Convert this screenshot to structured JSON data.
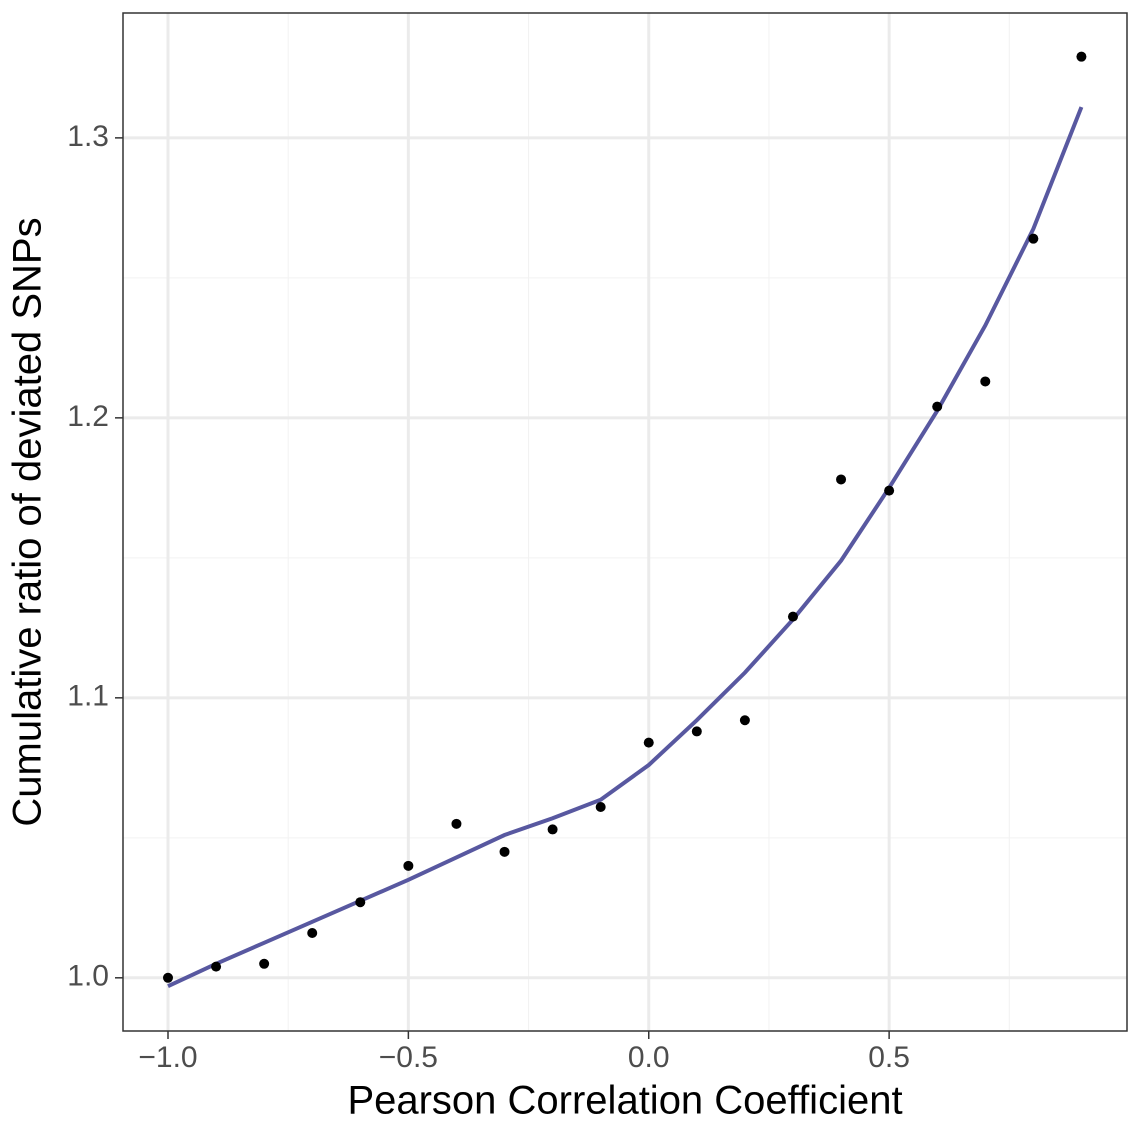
{
  "chart_data": {
    "type": "scatter",
    "x_label": "Pearson Correlation Coefficient",
    "y_label": "Cumulative ratio of deviated SNPs",
    "x": [
      -1.0,
      -0.9,
      -0.8,
      -0.7,
      -0.6,
      -0.5,
      -0.4,
      -0.3,
      -0.2,
      -0.1,
      0.0,
      0.1,
      0.2,
      0.3,
      0.4,
      0.5,
      0.6,
      0.7,
      0.8,
      0.9
    ],
    "values": [
      1.0,
      1.004,
      1.005,
      1.016,
      1.027,
      1.04,
      1.055,
      1.045,
      1.053,
      1.061,
      1.084,
      1.088,
      1.092,
      1.129,
      1.178,
      1.174,
      1.204,
      1.213,
      1.264,
      1.329
    ],
    "color": "#000000",
    "smooth": {
      "color": "#5858a0",
      "values": [
        0.997,
        1.005,
        1.0125,
        1.02,
        1.0275,
        1.035,
        1.043,
        1.051,
        1.057,
        1.0636,
        1.076,
        1.092,
        1.109,
        1.128,
        1.149,
        1.175,
        1.2025,
        1.233,
        1.2675,
        1.311
      ]
    },
    "xlim": [
      -1.0936,
      0.9948
    ],
    "ylim": [
      0.981,
      1.3446
    ],
    "xticks": [
      {
        "value": -1.0,
        "label": "−1.0"
      },
      {
        "value": -0.5,
        "label": "−0.5"
      },
      {
        "value": 0.0,
        "label": "0.0"
      },
      0.5
    ],
    "yticks": [
      {
        "value": 1.0,
        "label": "1.0"
      },
      1.1,
      1.2,
      1.3
    ],
    "xminor": [
      -0.75,
      -0.25,
      0.25,
      0.75
    ],
    "yminor": [
      1.05,
      1.15,
      1.25
    ],
    "grid": true
  }
}
